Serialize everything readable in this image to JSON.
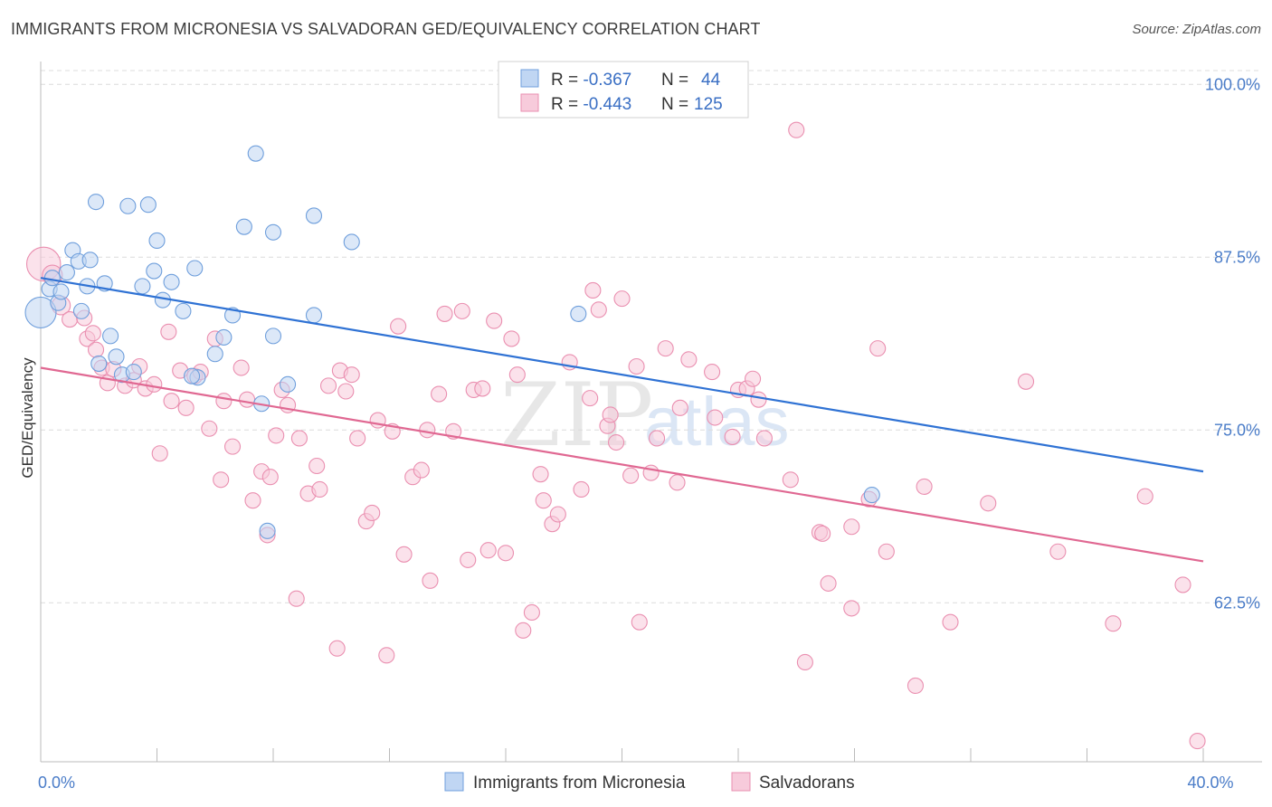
{
  "title": "IMMIGRANTS FROM MICRONESIA VS SALVADORAN GED/EQUIVALENCY CORRELATION CHART",
  "source": "Source: ZipAtlas.com",
  "watermark": {
    "zip": "ZIP",
    "atlas": "atlas"
  },
  "legend_box": {
    "rows": [
      {
        "r_label": "R = ",
        "r_value": "-0.367",
        "n_label": "N = ",
        "n_value": "44"
      },
      {
        "r_label": "R = ",
        "r_value": "-0.443",
        "n_label": "N = ",
        "n_value": "125"
      }
    ]
  },
  "colors": {
    "micronesia": "#6f9fdc",
    "micronesia_fill": "#c0d6f3",
    "micronesia_line": "#2f72d4",
    "salvadoran": "#ea8fb0",
    "salvadoran_fill": "#f7cbdb",
    "salvadoran_line": "#e06892",
    "tick_label": "#4a7cc8",
    "grid": "#dcdcdc"
  },
  "chart_data": {
    "type": "scatter",
    "title": "IMMIGRANTS FROM MICRONESIA VS SALVADORAN GED/EQUIVALENCY CORRELATION CHART",
    "xlabel": "",
    "ylabel": "GED/Equivalency",
    "xlim": [
      0,
      40
    ],
    "ylim": [
      51,
      101
    ],
    "x_tick_labels": [
      {
        "value": 0,
        "label": "0.0%"
      },
      {
        "value": 40,
        "label": "40.0%"
      }
    ],
    "y_tick_labels": [
      {
        "value": 100,
        "label": "100.0%"
      },
      {
        "value": 87.5,
        "label": "87.5%"
      },
      {
        "value": 75,
        "label": "75.0%"
      },
      {
        "value": 62.5,
        "label": "62.5%"
      }
    ],
    "grid": true,
    "legend_position": "bottom",
    "series": [
      {
        "name": "Immigrants from Micronesia",
        "R": -0.367,
        "N": 44,
        "trend": {
          "x": [
            0,
            40
          ],
          "y": [
            86.0,
            72.0
          ]
        },
        "points": [
          [
            0.0,
            83.5,
            2.0
          ],
          [
            0.3,
            85.2,
            1
          ],
          [
            0.4,
            86.0,
            1
          ],
          [
            0.6,
            84.2,
            1
          ],
          [
            0.7,
            85.0,
            1
          ],
          [
            0.9,
            86.4,
            1
          ],
          [
            1.1,
            88.0,
            1
          ],
          [
            1.3,
            87.2,
            1
          ],
          [
            1.7,
            87.3,
            1
          ],
          [
            1.4,
            83.6,
            1
          ],
          [
            1.6,
            85.4,
            1
          ],
          [
            1.9,
            91.5,
            1
          ],
          [
            2.2,
            85.6,
            1
          ],
          [
            2.4,
            81.8,
            1
          ],
          [
            2.6,
            80.3,
            1
          ],
          [
            2.0,
            79.8,
            1
          ],
          [
            2.8,
            79.0,
            1
          ],
          [
            3.2,
            79.2,
            1
          ],
          [
            3.0,
            91.2,
            1
          ],
          [
            3.7,
            91.3,
            1
          ],
          [
            3.5,
            85.4,
            1
          ],
          [
            3.9,
            86.5,
            1
          ],
          [
            4.0,
            88.7,
            1
          ],
          [
            4.2,
            84.4,
            1
          ],
          [
            4.5,
            85.7,
            1
          ],
          [
            4.9,
            83.6,
            1
          ],
          [
            5.3,
            86.7,
            1
          ],
          [
            5.4,
            78.8,
            1
          ],
          [
            6.0,
            80.5,
            1
          ],
          [
            6.3,
            81.7,
            1
          ],
          [
            6.6,
            83.3,
            1
          ],
          [
            7.0,
            89.7,
            1
          ],
          [
            7.4,
            95.0,
            1
          ],
          [
            7.6,
            76.9,
            1
          ],
          [
            8.0,
            89.3,
            1
          ],
          [
            8.0,
            81.8,
            1
          ],
          [
            8.5,
            78.3,
            1
          ],
          [
            9.4,
            83.3,
            1
          ],
          [
            9.4,
            90.5,
            1
          ],
          [
            10.7,
            88.6,
            1
          ],
          [
            18.5,
            83.4,
            1
          ],
          [
            28.6,
            70.3,
            1
          ],
          [
            7.8,
            67.7,
            1
          ],
          [
            5.2,
            78.9,
            1
          ]
        ]
      },
      {
        "name": "Salvadorans",
        "R": -0.443,
        "N": 125,
        "trend": {
          "x": [
            0,
            40
          ],
          "y": [
            79.5,
            65.5
          ]
        },
        "points": [
          [
            0.1,
            87.0,
            2.2
          ],
          [
            0.4,
            86.2,
            1.3
          ],
          [
            0.7,
            84.0,
            1.2
          ],
          [
            1.0,
            83.0,
            1
          ],
          [
            1.5,
            83.1,
            1
          ],
          [
            1.6,
            81.6,
            1
          ],
          [
            1.8,
            82.0,
            1
          ],
          [
            1.9,
            80.8,
            1
          ],
          [
            2.1,
            79.5,
            1
          ],
          [
            2.3,
            78.4,
            1
          ],
          [
            2.5,
            79.4,
            1
          ],
          [
            2.9,
            78.2,
            1
          ],
          [
            3.2,
            78.6,
            1
          ],
          [
            3.4,
            79.6,
            1
          ],
          [
            3.6,
            78.0,
            1
          ],
          [
            3.9,
            78.3,
            1
          ],
          [
            4.1,
            73.3,
            1
          ],
          [
            4.4,
            82.1,
            1
          ],
          [
            4.5,
            77.1,
            1
          ],
          [
            4.8,
            79.3,
            1
          ],
          [
            5.0,
            76.6,
            1
          ],
          [
            5.3,
            78.9,
            1
          ],
          [
            5.5,
            79.2,
            1
          ],
          [
            5.8,
            75.1,
            1
          ],
          [
            6.0,
            81.6,
            1
          ],
          [
            6.2,
            71.4,
            1
          ],
          [
            6.3,
            77.1,
            1
          ],
          [
            6.6,
            73.8,
            1
          ],
          [
            6.9,
            79.5,
            1
          ],
          [
            7.1,
            77.2,
            1
          ],
          [
            7.3,
            69.9,
            1
          ],
          [
            7.6,
            72.0,
            1
          ],
          [
            7.9,
            71.6,
            1
          ],
          [
            7.8,
            67.4,
            1
          ],
          [
            8.1,
            74.6,
            1
          ],
          [
            8.3,
            77.9,
            1
          ],
          [
            8.5,
            76.8,
            1
          ],
          [
            8.9,
            74.4,
            1
          ],
          [
            8.8,
            62.8,
            1
          ],
          [
            9.2,
            70.4,
            1
          ],
          [
            9.5,
            72.4,
            1
          ],
          [
            9.6,
            70.7,
            1
          ],
          [
            9.9,
            78.2,
            1
          ],
          [
            10.2,
            59.2,
            1
          ],
          [
            10.3,
            79.3,
            1
          ],
          [
            10.5,
            77.8,
            1
          ],
          [
            10.7,
            79.0,
            1
          ],
          [
            10.9,
            74.4,
            1
          ],
          [
            11.2,
            68.4,
            1
          ],
          [
            11.4,
            69.0,
            1
          ],
          [
            11.6,
            75.7,
            1
          ],
          [
            11.9,
            58.7,
            1
          ],
          [
            12.1,
            74.9,
            1
          ],
          [
            12.3,
            82.5,
            1
          ],
          [
            12.5,
            66.0,
            1
          ],
          [
            12.8,
            71.6,
            1
          ],
          [
            13.1,
            72.1,
            1
          ],
          [
            13.3,
            75.0,
            1
          ],
          [
            13.4,
            64.1,
            1
          ],
          [
            13.7,
            77.6,
            1
          ],
          [
            13.9,
            83.4,
            1
          ],
          [
            14.2,
            74.9,
            1
          ],
          [
            14.5,
            83.6,
            1
          ],
          [
            14.7,
            65.6,
            1
          ],
          [
            14.9,
            77.9,
            1
          ],
          [
            15.2,
            78.0,
            1
          ],
          [
            15.4,
            66.3,
            1
          ],
          [
            15.6,
            82.9,
            1
          ],
          [
            16.0,
            66.1,
            1
          ],
          [
            16.2,
            81.6,
            1
          ],
          [
            16.4,
            79.0,
            1
          ],
          [
            16.6,
            60.5,
            1
          ],
          [
            16.9,
            61.8,
            1
          ],
          [
            17.2,
            71.8,
            1
          ],
          [
            17.3,
            69.9,
            1
          ],
          [
            17.6,
            68.2,
            1
          ],
          [
            17.8,
            68.9,
            1
          ],
          [
            18.2,
            79.9,
            1
          ],
          [
            18.6,
            70.7,
            1
          ],
          [
            18.9,
            77.3,
            1
          ],
          [
            19.0,
            85.1,
            1
          ],
          [
            19.2,
            83.7,
            1
          ],
          [
            19.5,
            75.3,
            1
          ],
          [
            19.6,
            76.1,
            1
          ],
          [
            19.8,
            74.1,
            1
          ],
          [
            20.0,
            84.5,
            1
          ],
          [
            20.3,
            71.7,
            1
          ],
          [
            20.6,
            61.1,
            1
          ],
          [
            20.5,
            79.6,
            1
          ],
          [
            21.0,
            71.9,
            1
          ],
          [
            21.2,
            74.4,
            1
          ],
          [
            21.5,
            80.9,
            1
          ],
          [
            21.9,
            71.2,
            1
          ],
          [
            22.0,
            76.6,
            1
          ],
          [
            22.3,
            80.1,
            1
          ],
          [
            23.1,
            79.2,
            1
          ],
          [
            23.2,
            75.9,
            1
          ],
          [
            23.8,
            74.5,
            1
          ],
          [
            24.0,
            77.9,
            1
          ],
          [
            24.3,
            78.0,
            1
          ],
          [
            24.5,
            78.7,
            1
          ],
          [
            24.7,
            77.2,
            1
          ],
          [
            24.9,
            74.4,
            1
          ],
          [
            26.0,
            96.7,
            1
          ],
          [
            26.3,
            58.2,
            1
          ],
          [
            25.8,
            71.4,
            1
          ],
          [
            26.8,
            67.6,
            1
          ],
          [
            26.9,
            67.5,
            1
          ],
          [
            27.1,
            63.9,
            1
          ],
          [
            27.9,
            62.1,
            1
          ],
          [
            27.9,
            68.0,
            1
          ],
          [
            28.5,
            70.0,
            1
          ],
          [
            28.8,
            80.9,
            1
          ],
          [
            29.1,
            66.2,
            1
          ],
          [
            30.1,
            56.5,
            1
          ],
          [
            30.4,
            70.9,
            1
          ],
          [
            31.3,
            61.1,
            1
          ],
          [
            32.6,
            69.7,
            1
          ],
          [
            33.9,
            78.5,
            1
          ],
          [
            35.0,
            66.2,
            1
          ],
          [
            36.9,
            61.0,
            1
          ],
          [
            38.0,
            70.2,
            1
          ],
          [
            39.3,
            63.8,
            1
          ],
          [
            39.8,
            52.5,
            1
          ]
        ]
      }
    ]
  }
}
